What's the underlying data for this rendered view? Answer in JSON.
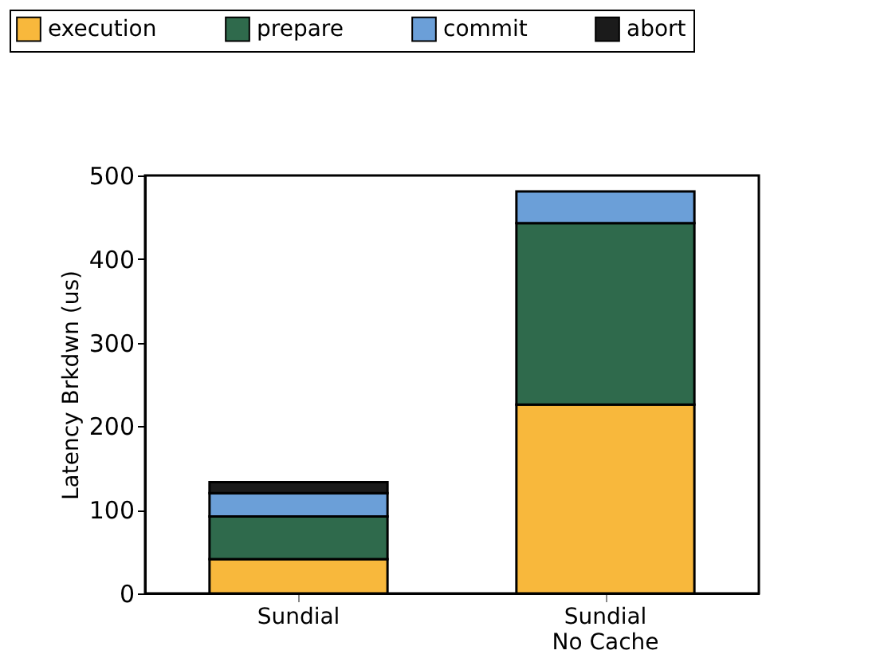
{
  "chart_data": {
    "type": "bar",
    "stacked": true,
    "ylabel": "Latency Brkdwn (us)",
    "categories": [
      "Sundial",
      "Sundial\nNo Cache"
    ],
    "series": [
      {
        "name": "execution",
        "color": "#f8b83c",
        "values": [
          41,
          226
        ]
      },
      {
        "name": "prepare",
        "color": "#2f6a4c",
        "values": [
          51,
          217
        ]
      },
      {
        "name": "commit",
        "color": "#6b9fd8",
        "values": [
          28,
          38
        ]
      },
      {
        "name": "abort",
        "color": "#1b1b1b",
        "values": [
          13,
          null
        ]
      }
    ],
    "ylim": [
      0,
      500
    ],
    "yticks": [
      0,
      100,
      200,
      300,
      400,
      500
    ],
    "grid": false,
    "legend": "top"
  }
}
